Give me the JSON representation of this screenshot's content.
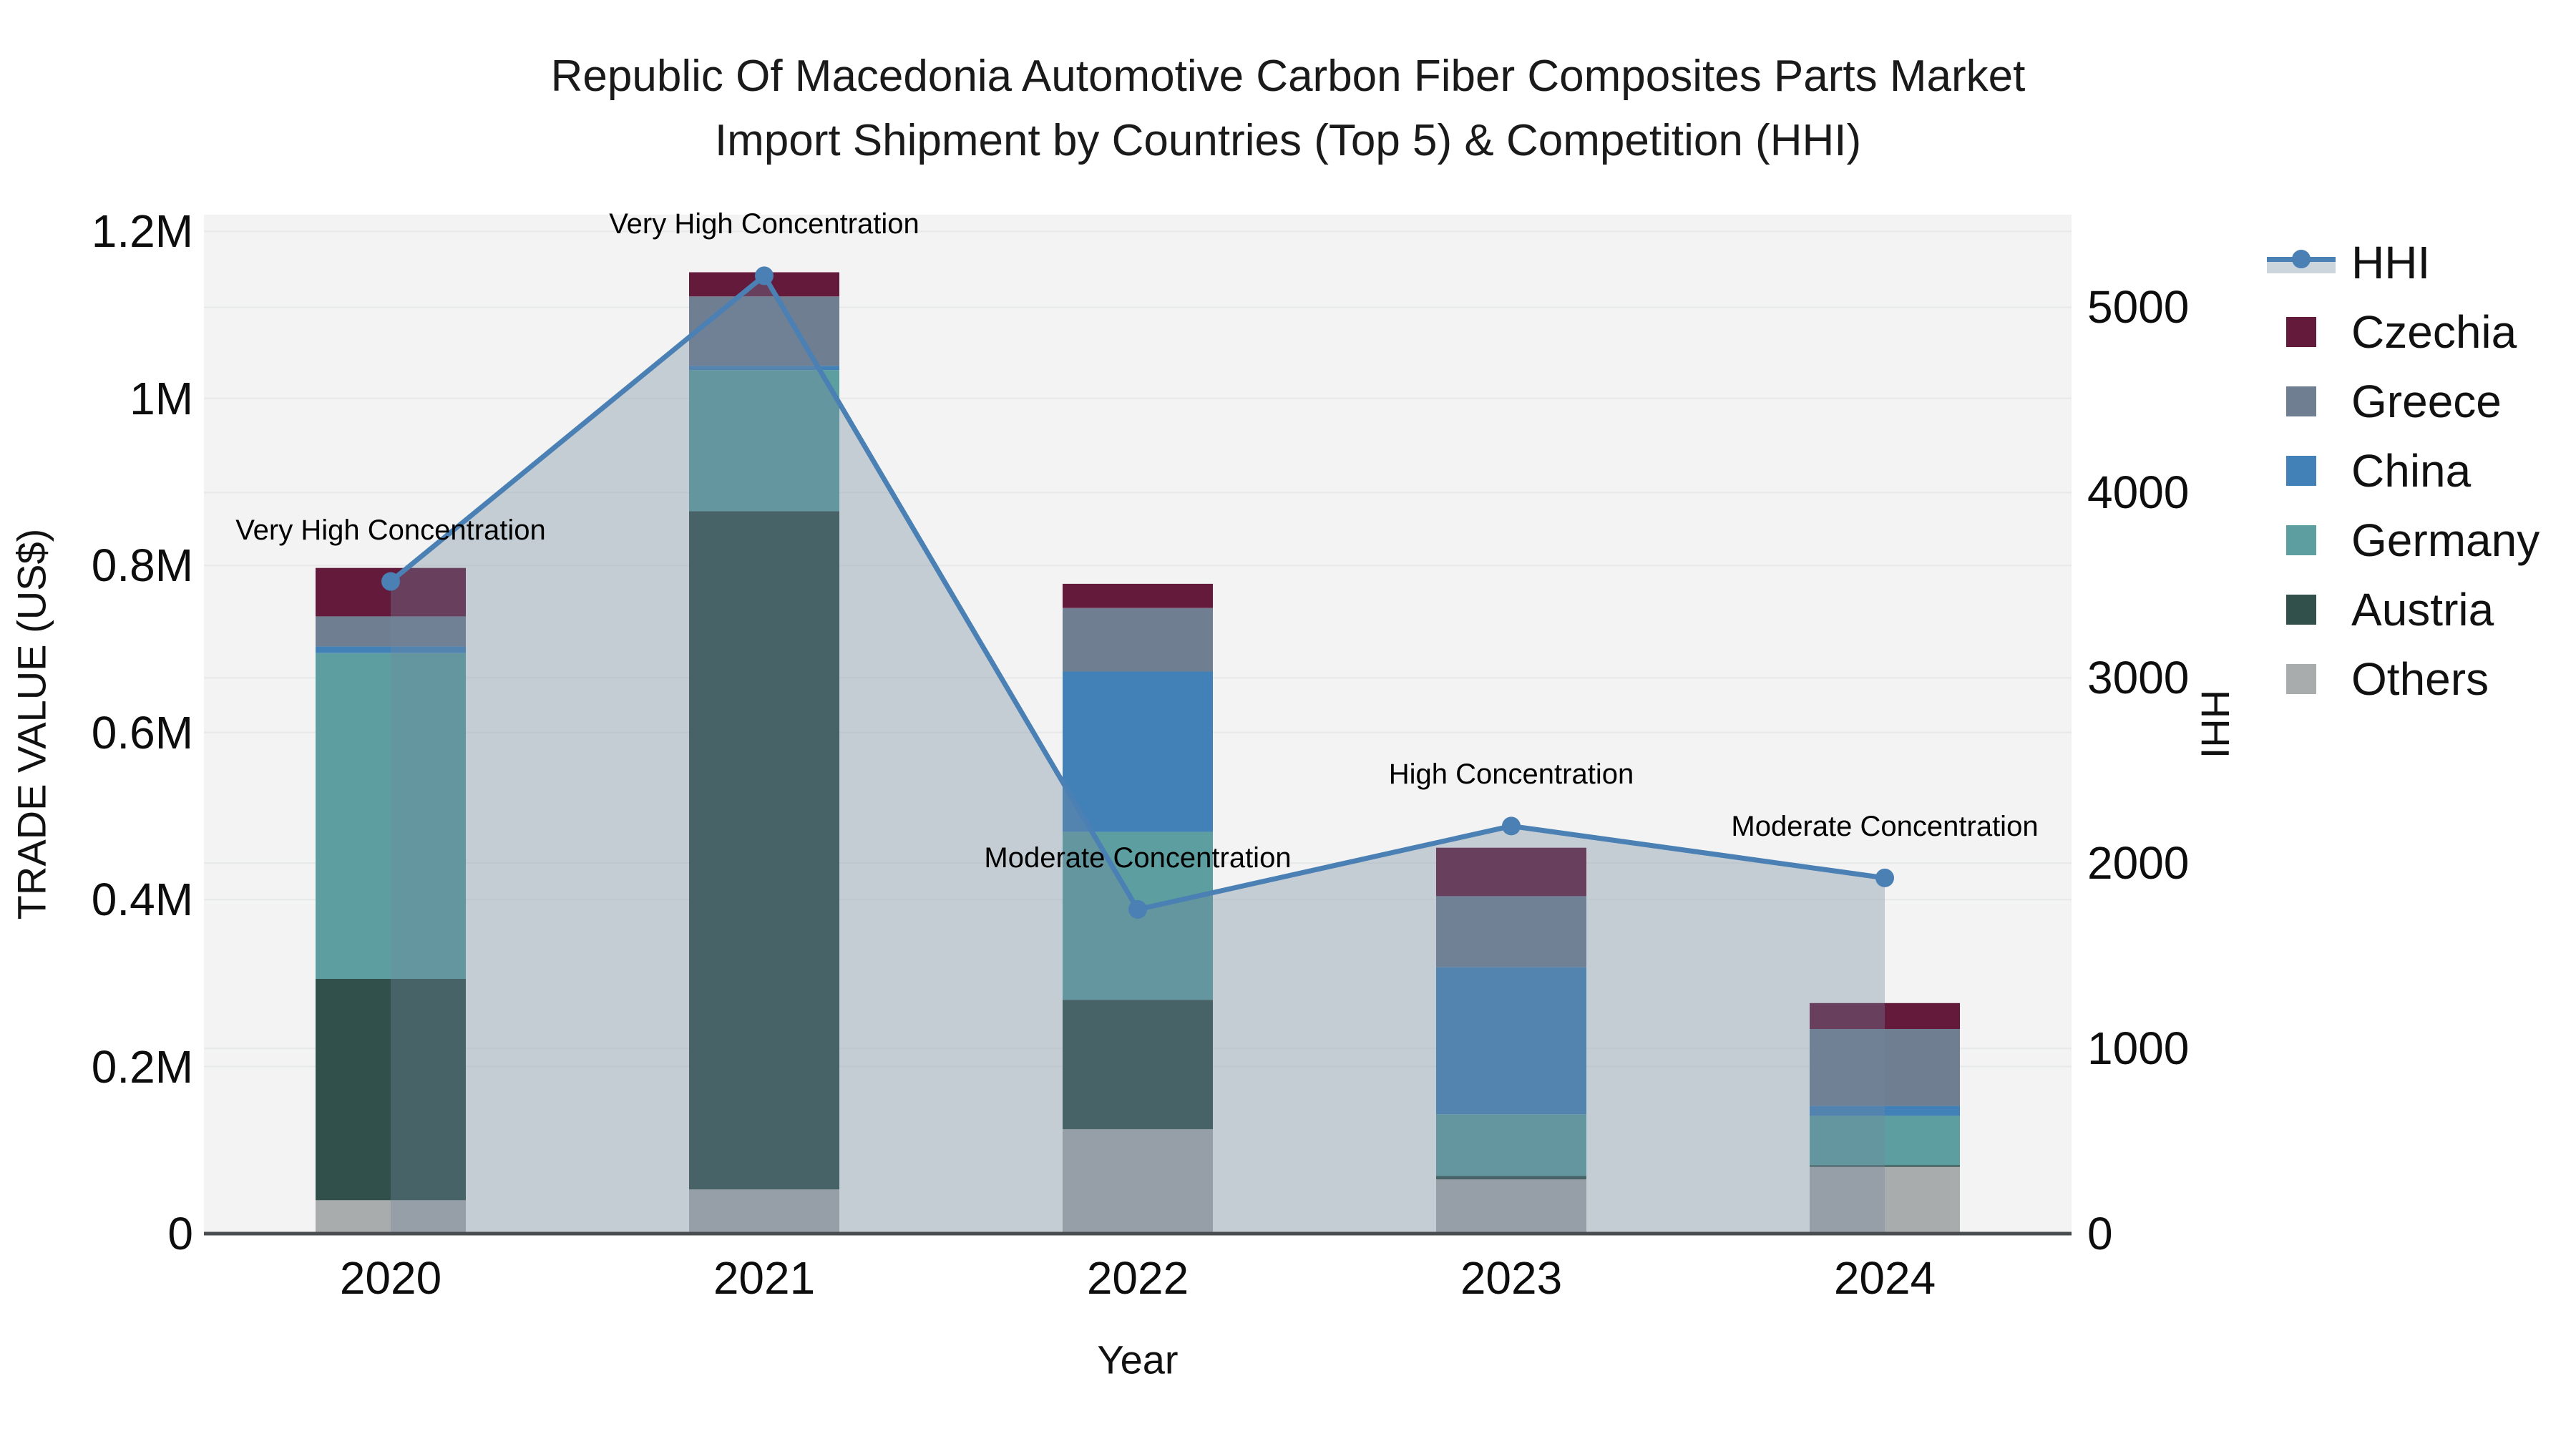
{
  "title": {
    "line1": "Republic Of Macedonia Automotive Carbon Fiber Composites Parts Market",
    "line2": "Import Shipment by Countries (Top 5) & Competition (HHI)"
  },
  "axes": {
    "x_title": "Year",
    "y_left_title": "TRADE VALUE (US$)",
    "y_right_title": "HHI"
  },
  "legend": [
    {
      "label": "HHI",
      "type": "line",
      "color": "#4a80b4"
    },
    {
      "label": "Czechia",
      "type": "swatch",
      "color": "#631a3b"
    },
    {
      "label": "Greece",
      "type": "swatch",
      "color": "#6f7e91"
    },
    {
      "label": "China",
      "type": "swatch",
      "color": "#4281b8"
    },
    {
      "label": "Germany",
      "type": "swatch",
      "color": "#5d9fa0"
    },
    {
      "label": "Austria",
      "type": "swatch",
      "color": "#31504c"
    },
    {
      "label": "Others",
      "type": "swatch",
      "color": "#a9acac"
    }
  ],
  "chart_data": {
    "type": "bar",
    "subtype": "stacked-bar-with-line",
    "title": "Republic Of Macedonia Automotive Carbon Fiber Composites Parts Market Import Shipment by Countries (Top 5) & Competition (HHI)",
    "categories": [
      "2020",
      "2021",
      "2022",
      "2023",
      "2024"
    ],
    "series": [
      {
        "name": "Others",
        "color": "#a9acac",
        "values": [
          40000,
          53000,
          125000,
          65000,
          80000
        ]
      },
      {
        "name": "Austria",
        "color": "#31504c",
        "values": [
          265000,
          812000,
          155000,
          4000,
          2000
        ]
      },
      {
        "name": "Germany",
        "color": "#5d9fa0",
        "values": [
          390000,
          169000,
          201000,
          74000,
          59000
        ]
      },
      {
        "name": "China",
        "color": "#4281b8",
        "values": [
          8000,
          5000,
          192000,
          176000,
          12000
        ]
      },
      {
        "name": "Greece",
        "color": "#6f7e91",
        "values": [
          36000,
          83000,
          76000,
          85000,
          92000
        ]
      },
      {
        "name": "Czechia",
        "color": "#631a3b",
        "values": [
          58000,
          29000,
          29000,
          58000,
          31000
        ]
      }
    ],
    "line_series": {
      "name": "HHI",
      "axis": "right",
      "color": "#4a80b4",
      "area_fill": "rgba(116,136,158,0.35)",
      "values": [
        3520,
        5170,
        1750,
        2200,
        1920
      ]
    },
    "annotations": [
      "Very High Concentration",
      "Very High Concentration",
      "Moderate Concentration",
      "High Concentration",
      "Moderate Concentration"
    ],
    "xlabel": "Year",
    "ylabel_left": "TRADE VALUE (US$)",
    "ylabel_right": "HHI",
    "y_left": {
      "top": 1220000,
      "ticks": [
        {
          "v": 0,
          "label": "0"
        },
        {
          "v": 200000,
          "label": "0.2M"
        },
        {
          "v": 400000,
          "label": "0.4M"
        },
        {
          "v": 600000,
          "label": "0.6M"
        },
        {
          "v": 800000,
          "label": "0.8M"
        },
        {
          "v": 1000000,
          "label": "1M"
        },
        {
          "v": 1200000,
          "label": "1.2M"
        }
      ]
    },
    "y_right": {
      "top": 5500,
      "ticks": [
        {
          "v": 0,
          "label": "0"
        },
        {
          "v": 1000,
          "label": "1000"
        },
        {
          "v": 2000,
          "label": "2000"
        },
        {
          "v": 3000,
          "label": "3000"
        },
        {
          "v": 4000,
          "label": "4000"
        },
        {
          "v": 5000,
          "label": "5000"
        }
      ]
    },
    "layout": {
      "plot_bg": "#f2f3f2",
      "gridline_color": "#e7e9e9",
      "axis_line_color": "#4a4d4f",
      "grid": true,
      "legend_position": "right"
    }
  }
}
